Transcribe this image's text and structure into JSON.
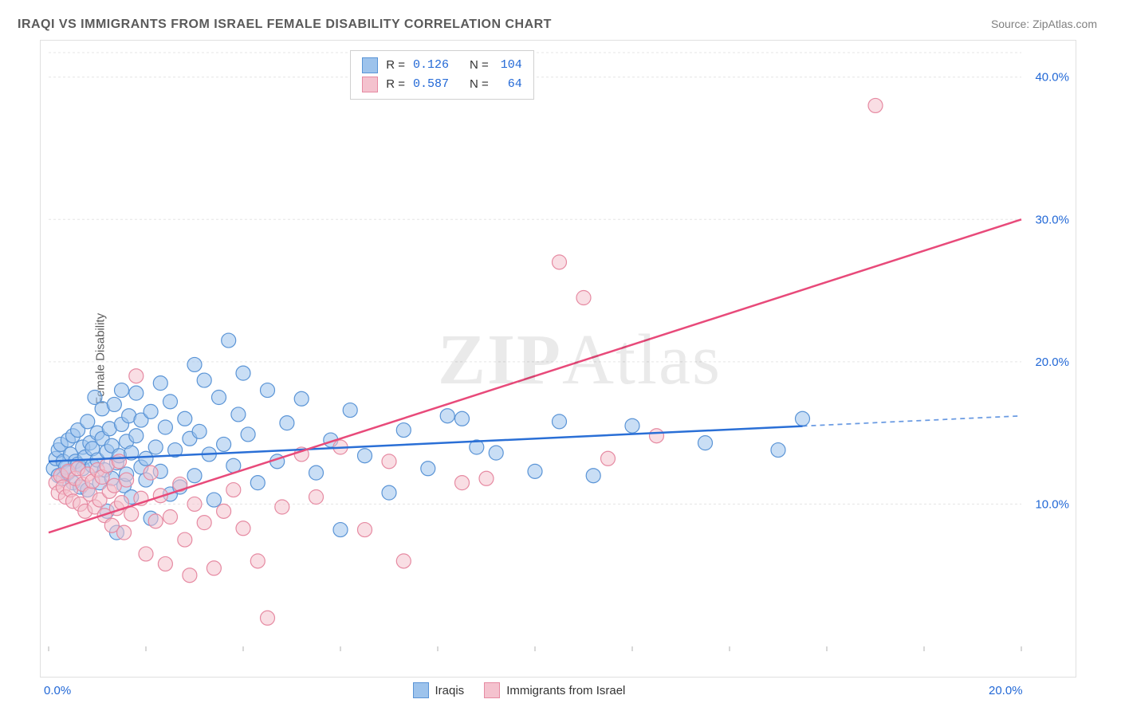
{
  "title": "IRAQI VS IMMIGRANTS FROM ISRAEL FEMALE DISABILITY CORRELATION CHART",
  "source_prefix": "Source: ",
  "source_name": "ZipAtlas.com",
  "ylabel": "Female Disability",
  "watermark": "ZIPAtlas",
  "chart": {
    "type": "scatter",
    "xlim": [
      0,
      20
    ],
    "ylim": [
      0,
      42
    ],
    "x_ticks": [
      0,
      2,
      4,
      6,
      8,
      10,
      12,
      14,
      16,
      18,
      20
    ],
    "x_tick_labels": {
      "0": "0.0%",
      "20": "20.0%"
    },
    "y_ticks": [
      10,
      20,
      30,
      40
    ],
    "y_tick_labels": {
      "10": "10.0%",
      "20": "20.0%",
      "30": "30.0%",
      "40": "40.0%"
    },
    "grid_color": "#e5e5e5",
    "grid_dash": "3,3",
    "axis_label_color": "#2268d6",
    "background_color": "#ffffff",
    "marker_radius": 9,
    "marker_opacity": 0.55,
    "line_width": 2.5,
    "series": [
      {
        "name": "Iraqis",
        "color_fill": "#9dc3ec",
        "color_stroke": "#5a94d6",
        "line_color": "#2a6fd6",
        "R": "0.126",
        "N": "104",
        "trend": {
          "x1": 0,
          "y1": 13.0,
          "x2": 20,
          "y2": 16.2,
          "solid_until_x": 15.5
        },
        "points": [
          [
            0.1,
            12.5
          ],
          [
            0.15,
            13.2
          ],
          [
            0.2,
            12.0
          ],
          [
            0.2,
            13.8
          ],
          [
            0.25,
            14.2
          ],
          [
            0.3,
            11.8
          ],
          [
            0.3,
            13.0
          ],
          [
            0.35,
            12.6
          ],
          [
            0.4,
            14.5
          ],
          [
            0.4,
            12.2
          ],
          [
            0.45,
            13.5
          ],
          [
            0.5,
            11.5
          ],
          [
            0.5,
            14.8
          ],
          [
            0.55,
            13.0
          ],
          [
            0.6,
            12.8
          ],
          [
            0.6,
            15.2
          ],
          [
            0.65,
            11.2
          ],
          [
            0.7,
            14.0
          ],
          [
            0.7,
            12.5
          ],
          [
            0.75,
            13.3
          ],
          [
            0.8,
            15.8
          ],
          [
            0.8,
            11.0
          ],
          [
            0.85,
            14.3
          ],
          [
            0.9,
            12.7
          ],
          [
            0.9,
            13.9
          ],
          [
            0.95,
            17.5
          ],
          [
            1.0,
            13.1
          ],
          [
            1.0,
            15.0
          ],
          [
            1.05,
            11.5
          ],
          [
            1.1,
            14.6
          ],
          [
            1.1,
            16.7
          ],
          [
            1.15,
            12.4
          ],
          [
            1.2,
            13.7
          ],
          [
            1.2,
            9.5
          ],
          [
            1.25,
            15.3
          ],
          [
            1.3,
            11.8
          ],
          [
            1.3,
            14.1
          ],
          [
            1.35,
            17.0
          ],
          [
            1.4,
            12.9
          ],
          [
            1.4,
            8.0
          ],
          [
            1.45,
            13.4
          ],
          [
            1.5,
            18.0
          ],
          [
            1.5,
            15.6
          ],
          [
            1.55,
            11.3
          ],
          [
            1.6,
            14.4
          ],
          [
            1.6,
            12.1
          ],
          [
            1.65,
            16.2
          ],
          [
            1.7,
            13.6
          ],
          [
            1.7,
            10.5
          ],
          [
            1.8,
            17.8
          ],
          [
            1.8,
            14.8
          ],
          [
            1.9,
            12.6
          ],
          [
            1.9,
            15.9
          ],
          [
            2.0,
            13.2
          ],
          [
            2.0,
            11.7
          ],
          [
            2.1,
            16.5
          ],
          [
            2.1,
            9.0
          ],
          [
            2.2,
            14.0
          ],
          [
            2.3,
            18.5
          ],
          [
            2.3,
            12.3
          ],
          [
            2.4,
            15.4
          ],
          [
            2.5,
            10.7
          ],
          [
            2.5,
            17.2
          ],
          [
            2.6,
            13.8
          ],
          [
            2.7,
            11.2
          ],
          [
            2.8,
            16.0
          ],
          [
            2.9,
            14.6
          ],
          [
            3.0,
            19.8
          ],
          [
            3.0,
            12.0
          ],
          [
            3.1,
            15.1
          ],
          [
            3.2,
            18.7
          ],
          [
            3.3,
            13.5
          ],
          [
            3.4,
            10.3
          ],
          [
            3.5,
            17.5
          ],
          [
            3.6,
            14.2
          ],
          [
            3.7,
            21.5
          ],
          [
            3.8,
            12.7
          ],
          [
            3.9,
            16.3
          ],
          [
            4.0,
            19.2
          ],
          [
            4.1,
            14.9
          ],
          [
            4.3,
            11.5
          ],
          [
            4.5,
            18.0
          ],
          [
            4.7,
            13.0
          ],
          [
            4.9,
            15.7
          ],
          [
            5.2,
            17.4
          ],
          [
            5.5,
            12.2
          ],
          [
            5.8,
            14.5
          ],
          [
            6.0,
            8.2
          ],
          [
            6.2,
            16.6
          ],
          [
            6.5,
            13.4
          ],
          [
            7.0,
            10.8
          ],
          [
            7.3,
            15.2
          ],
          [
            7.8,
            12.5
          ],
          [
            8.2,
            16.2
          ],
          [
            8.5,
            16.0
          ],
          [
            8.8,
            14.0
          ],
          [
            9.2,
            13.6
          ],
          [
            10.0,
            12.3
          ],
          [
            10.5,
            15.8
          ],
          [
            11.2,
            12.0
          ],
          [
            12.0,
            15.5
          ],
          [
            13.5,
            14.3
          ],
          [
            15.0,
            13.8
          ],
          [
            15.5,
            16.0
          ]
        ]
      },
      {
        "name": "Immigrants from Israel",
        "color_fill": "#f4c2ce",
        "color_stroke": "#e68aa2",
        "line_color": "#e84a7a",
        "R": "0.587",
        "N": "64",
        "trend": {
          "x1": 0,
          "y1": 8.0,
          "x2": 20,
          "y2": 30.0,
          "solid_until_x": 20
        },
        "points": [
          [
            0.15,
            11.5
          ],
          [
            0.2,
            10.8
          ],
          [
            0.25,
            12.0
          ],
          [
            0.3,
            11.2
          ],
          [
            0.35,
            10.5
          ],
          [
            0.4,
            12.3
          ],
          [
            0.45,
            11.0
          ],
          [
            0.5,
            10.2
          ],
          [
            0.55,
            11.8
          ],
          [
            0.6,
            12.5
          ],
          [
            0.65,
            10.0
          ],
          [
            0.7,
            11.4
          ],
          [
            0.75,
            9.5
          ],
          [
            0.8,
            12.1
          ],
          [
            0.85,
            10.7
          ],
          [
            0.9,
            11.6
          ],
          [
            0.95,
            9.8
          ],
          [
            1.0,
            12.4
          ],
          [
            1.05,
            10.3
          ],
          [
            1.1,
            11.9
          ],
          [
            1.15,
            9.2
          ],
          [
            1.2,
            12.7
          ],
          [
            1.25,
            10.9
          ],
          [
            1.3,
            8.5
          ],
          [
            1.35,
            11.3
          ],
          [
            1.4,
            9.7
          ],
          [
            1.45,
            13.0
          ],
          [
            1.5,
            10.1
          ],
          [
            1.55,
            8.0
          ],
          [
            1.6,
            11.7
          ],
          [
            1.7,
            9.3
          ],
          [
            1.8,
            19.0
          ],
          [
            1.9,
            10.4
          ],
          [
            2.0,
            6.5
          ],
          [
            2.1,
            12.2
          ],
          [
            2.2,
            8.8
          ],
          [
            2.3,
            10.6
          ],
          [
            2.4,
            5.8
          ],
          [
            2.5,
            9.1
          ],
          [
            2.7,
            11.4
          ],
          [
            2.8,
            7.5
          ],
          [
            2.9,
            5.0
          ],
          [
            3.0,
            10.0
          ],
          [
            3.2,
            8.7
          ],
          [
            3.4,
            5.5
          ],
          [
            3.6,
            9.5
          ],
          [
            3.8,
            11.0
          ],
          [
            4.0,
            8.3
          ],
          [
            4.3,
            6.0
          ],
          [
            4.5,
            2.0
          ],
          [
            4.8,
            9.8
          ],
          [
            5.2,
            13.5
          ],
          [
            5.5,
            10.5
          ],
          [
            6.0,
            14.0
          ],
          [
            6.5,
            8.2
          ],
          [
            7.0,
            13.0
          ],
          [
            7.3,
            6.0
          ],
          [
            8.5,
            11.5
          ],
          [
            9.0,
            11.8
          ],
          [
            10.5,
            27.0
          ],
          [
            11.0,
            24.5
          ],
          [
            11.5,
            13.2
          ],
          [
            12.5,
            14.8
          ],
          [
            17.0,
            38.0
          ]
        ]
      }
    ]
  },
  "legend_top": {
    "R_label": "R =",
    "N_label": "N ="
  },
  "legend_bottom_labels": [
    "Iraqis",
    "Immigrants from Israel"
  ]
}
